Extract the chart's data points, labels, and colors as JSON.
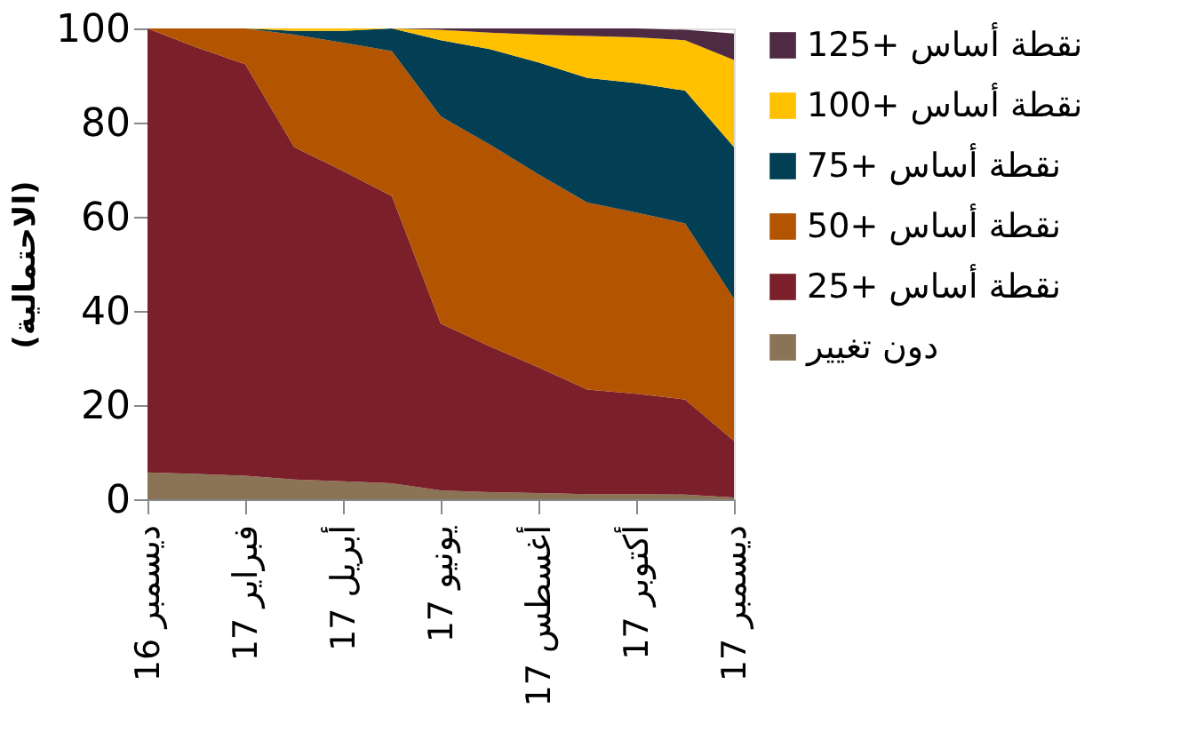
{
  "chart_data": {
    "type": "area",
    "stacked": true,
    "ylabel": "(الاحتمالية)",
    "categories": [
      "ديسمبر 16",
      null,
      "فبراير 17",
      null,
      "أبريل 17",
      null,
      "يونيو 17",
      null,
      "أغسطس 17",
      null,
      "أكتوبر 17",
      null,
      "ديسمبر 17"
    ],
    "series": [
      {
        "name": "دون تغيير",
        "color": "#8b7355",
        "values": [
          5.7,
          5.4,
          5.0,
          4.2,
          3.8,
          3.4,
          1.9,
          1.5,
          1.3,
          1.1,
          1.1,
          1.0,
          0.4
        ]
      },
      {
        "name": "نقطة أساس +25",
        "color": "#7b1f2a",
        "values": [
          94.3,
          90.6,
          87.4,
          70.6,
          65.9,
          61.0,
          35.4,
          31.0,
          26.7,
          22.2,
          21.3,
          20.2,
          12.0
        ]
      },
      {
        "name": "نقطة أساس +50",
        "color": "#b35400",
        "values": [
          0,
          4.0,
          7.6,
          23.9,
          27.3,
          30.8,
          44.0,
          42.9,
          41.0,
          39.7,
          38.5,
          37.4,
          30.2
        ]
      },
      {
        "name": "نقطة أساس +75",
        "color": "#023f54",
        "values": [
          0,
          0,
          0,
          0.8,
          2.5,
          4.8,
          16.2,
          20.2,
          23.8,
          26.5,
          27.5,
          28.2,
          32.2
        ]
      },
      {
        "name": "نقطة أساس +100",
        "color": "#ffc000",
        "values": [
          0,
          0,
          0,
          0.5,
          0.5,
          0,
          2.2,
          3.5,
          5.9,
          8.9,
          9.7,
          10.7,
          18.5
        ]
      },
      {
        "name": "نقطة أساس +125",
        "color": "#4e2a43",
        "values": [
          0,
          0,
          0,
          0,
          0,
          0,
          0.3,
          0.9,
          1.3,
          1.6,
          1.9,
          2.2,
          5.6
        ]
      }
    ],
    "ylim": [
      0,
      100
    ],
    "yticks": [
      0,
      20,
      40,
      60,
      80,
      100
    ],
    "grid": false,
    "legend": "right"
  }
}
